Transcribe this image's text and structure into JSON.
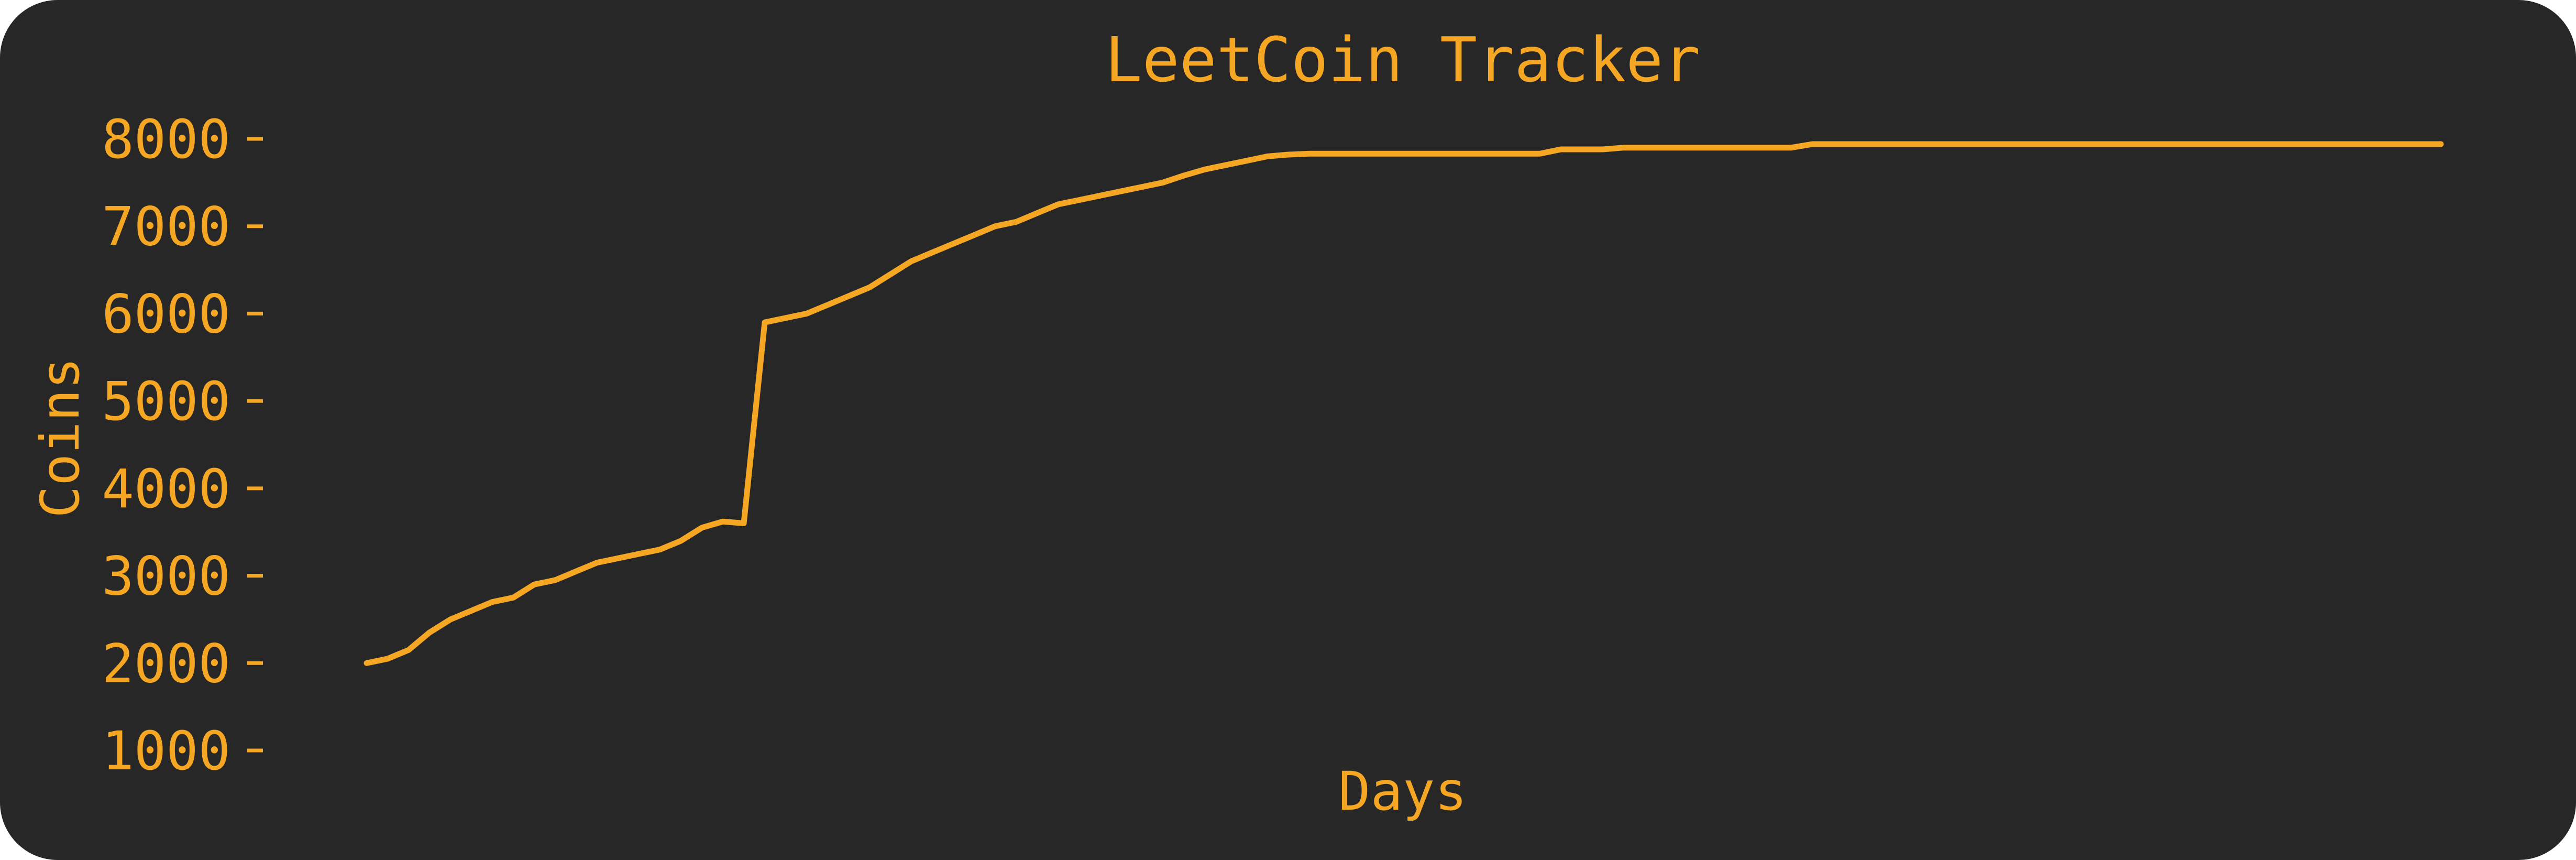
{
  "chart_data": {
    "type": "line",
    "title": "LeetCoin Tracker",
    "xlabel": "Days",
    "ylabel": "Coins",
    "ylim": [
      1000,
      8000
    ],
    "yticks": [
      "1000",
      "2000",
      "3000",
      "4000",
      "5000",
      "6000",
      "7000",
      "8000"
    ],
    "x_ticks_shown": false,
    "grid": false,
    "colors": {
      "background": "#272727",
      "accent": "#F5A623"
    },
    "series": [
      {
        "values": [
          2000,
          2050,
          2150,
          2350,
          2500,
          2600,
          2700,
          2750,
          2900,
          2950,
          3050,
          3150,
          3200,
          3250,
          3300,
          3400,
          3550,
          3620,
          3600,
          5900,
          5950,
          6000,
          6100,
          6200,
          6300,
          6450,
          6600,
          6700,
          6800,
          6900,
          7000,
          7050,
          7150,
          7250,
          7300,
          7350,
          7400,
          7450,
          7500,
          7580,
          7650,
          7700,
          7750,
          7800,
          7820,
          7830,
          7830,
          7830,
          7830,
          7830,
          7830,
          7830,
          7830,
          7830,
          7830,
          7830,
          7830,
          7880,
          7880,
          7880,
          7900,
          7900,
          7900,
          7900,
          7900,
          7900,
          7900,
          7900,
          7900,
          7940,
          7940,
          7940,
          7940,
          7940,
          7940,
          7940,
          7940,
          7940,
          7940,
          7940,
          7940,
          7940,
          7940,
          7940,
          7940,
          7940,
          7940,
          7940,
          7940,
          7940,
          7940,
          7940,
          7940,
          7940,
          7940,
          7940,
          7940,
          7940,
          7940,
          7940
        ]
      }
    ]
  }
}
